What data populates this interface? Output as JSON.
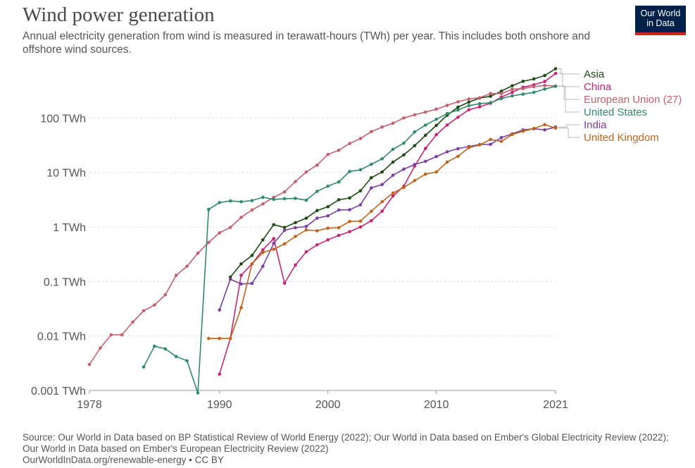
{
  "header": {
    "title": "Wind power generation",
    "subtitle": "Annual electricity generation from wind is measured in terawatt-hours (TWh) per year. This includes both onshore and offshore wind sources.",
    "logo_line1": "Our World",
    "logo_line2": "in Data"
  },
  "footer": {
    "source": "Source: Our World in Data based on BP Statistical Review of World Energy (2022); Our World in Data based on Ember's Global Electricity Review (2022); Our World in Data based on Ember's European Electricity Review (2022)",
    "url": "OurWorldInData.org/renewable-energy • CC BY"
  },
  "chart_data": {
    "type": "line",
    "title": "Wind power generation",
    "y_scale": "log",
    "ylim": [
      0.001,
      1000
    ],
    "xlim": [
      1978,
      2021
    ],
    "x_ticks": [
      1978,
      1990,
      2000,
      2010,
      2021
    ],
    "y_ticks": [
      {
        "value": 0.001,
        "label": "0.001 TWh"
      },
      {
        "value": 0.01,
        "label": "0.01 TWh"
      },
      {
        "value": 0.1,
        "label": "0.1 TWh"
      },
      {
        "value": 1,
        "label": "1 TWh"
      },
      {
        "value": 10,
        "label": "10 TWh"
      },
      {
        "value": 100,
        "label": "100 TWh"
      }
    ],
    "grid": "horizontal dashed",
    "legend_position": "right",
    "series": [
      {
        "name": "Asia",
        "color": "#1e4a14",
        "points": [
          [
            1991,
            0.12
          ],
          [
            1992,
            0.21
          ],
          [
            1993,
            0.3
          ],
          [
            1994,
            0.58
          ],
          [
            1995,
            1.1
          ],
          [
            1996,
            0.98
          ],
          [
            1997,
            1.2
          ],
          [
            1998,
            1.45
          ],
          [
            1999,
            2.0
          ],
          [
            2000,
            2.35
          ],
          [
            2001,
            3.15
          ],
          [
            2002,
            3.4
          ],
          [
            2003,
            4.6
          ],
          [
            2004,
            8.0
          ],
          [
            2005,
            10.2
          ],
          [
            2006,
            15.5
          ],
          [
            2007,
            21
          ],
          [
            2008,
            31
          ],
          [
            2009,
            48
          ],
          [
            2010,
            73
          ],
          [
            2011,
            112
          ],
          [
            2012,
            158
          ],
          [
            2013,
            195
          ],
          [
            2014,
            232
          ],
          [
            2015,
            250
          ],
          [
            2016,
            310
          ],
          [
            2017,
            390
          ],
          [
            2018,
            470
          ],
          [
            2019,
            520
          ],
          [
            2020,
            600
          ],
          [
            2021,
            800
          ]
        ]
      },
      {
        "name": "China",
        "color": "#c82473",
        "points": [
          [
            1990,
            0.002
          ],
          [
            1991,
            0.009
          ],
          [
            1992,
            0.13
          ],
          [
            1993,
            0.21
          ],
          [
            1994,
            0.38
          ],
          [
            1995,
            0.61
          ],
          [
            1996,
            0.093
          ],
          [
            1997,
            0.2
          ],
          [
            1998,
            0.35
          ],
          [
            1999,
            0.47
          ],
          [
            2000,
            0.58
          ],
          [
            2001,
            0.7
          ],
          [
            2002,
            0.82
          ],
          [
            2003,
            1.0
          ],
          [
            2004,
            1.3
          ],
          [
            2005,
            1.95
          ],
          [
            2006,
            3.7
          ],
          [
            2007,
            5.6
          ],
          [
            2008,
            13.1
          ],
          [
            2009,
            27.6
          ],
          [
            2010,
            49.4
          ],
          [
            2011,
            74.1
          ],
          [
            2012,
            103
          ],
          [
            2013,
            141
          ],
          [
            2014,
            160
          ],
          [
            2015,
            186
          ],
          [
            2016,
            241
          ],
          [
            2017,
            295
          ],
          [
            2018,
            366
          ],
          [
            2019,
            406
          ],
          [
            2020,
            467
          ],
          [
            2021,
            656
          ]
        ]
      },
      {
        "name": "European Union (27)",
        "color": "#c45f6e",
        "points": [
          [
            1978,
            0.003
          ],
          [
            1979,
            0.006
          ],
          [
            1980,
            0.0105
          ],
          [
            1981,
            0.0105
          ],
          [
            1982,
            0.018
          ],
          [
            1983,
            0.029
          ],
          [
            1984,
            0.037
          ],
          [
            1985,
            0.057
          ],
          [
            1986,
            0.13
          ],
          [
            1987,
            0.19
          ],
          [
            1988,
            0.33
          ],
          [
            1989,
            0.52
          ],
          [
            1990,
            0.78
          ],
          [
            1991,
            0.98
          ],
          [
            1992,
            1.5
          ],
          [
            1993,
            2.05
          ],
          [
            1994,
            2.65
          ],
          [
            1995,
            3.5
          ],
          [
            1996,
            4.4
          ],
          [
            1997,
            6.8
          ],
          [
            1998,
            10.2
          ],
          [
            1999,
            13.6
          ],
          [
            2000,
            21.4
          ],
          [
            2001,
            25.5
          ],
          [
            2002,
            34
          ],
          [
            2003,
            42
          ],
          [
            2004,
            56
          ],
          [
            2005,
            68
          ],
          [
            2006,
            80
          ],
          [
            2007,
            100
          ],
          [
            2008,
            114
          ],
          [
            2009,
            128
          ],
          [
            2010,
            145
          ],
          [
            2011,
            170
          ],
          [
            2012,
            198
          ],
          [
            2013,
            222
          ],
          [
            2014,
            235
          ],
          [
            2015,
            280
          ],
          [
            2016,
            280
          ],
          [
            2017,
            335
          ],
          [
            2018,
            345
          ],
          [
            2019,
            375
          ],
          [
            2020,
            395
          ],
          [
            2021,
            385
          ]
        ]
      },
      {
        "name": "United States",
        "color": "#2f8a68",
        "points": [
          [
            1983,
            0.0027
          ],
          [
            1984,
            0.0065
          ],
          [
            1985,
            0.0058
          ],
          [
            1986,
            0.0042
          ],
          [
            1987,
            0.0035
          ],
          [
            1988,
            0.0009
          ],
          [
            1989,
            2.1
          ],
          [
            1990,
            2.8
          ],
          [
            1991,
            3.0
          ],
          [
            1992,
            2.9
          ],
          [
            1993,
            3.05
          ],
          [
            1994,
            3.5
          ],
          [
            1995,
            3.2
          ],
          [
            1996,
            3.3
          ],
          [
            1997,
            3.35
          ],
          [
            1998,
            3.1
          ],
          [
            1999,
            4.5
          ],
          [
            2000,
            5.6
          ],
          [
            2001,
            6.7
          ],
          [
            2002,
            10.4
          ],
          [
            2003,
            11.2
          ],
          [
            2004,
            14.1
          ],
          [
            2005,
            17.8
          ],
          [
            2006,
            26.6
          ],
          [
            2007,
            34.5
          ],
          [
            2008,
            55.4
          ],
          [
            2009,
            73.9
          ],
          [
            2010,
            94.7
          ],
          [
            2011,
            120
          ],
          [
            2012,
            140
          ],
          [
            2013,
            168
          ],
          [
            2014,
            182
          ],
          [
            2015,
            191
          ],
          [
            2016,
            227
          ],
          [
            2017,
            254
          ],
          [
            2018,
            273
          ],
          [
            2019,
            295
          ],
          [
            2020,
            338
          ],
          [
            2021,
            380
          ]
        ]
      },
      {
        "name": "India",
        "color": "#7b3fa1",
        "points": [
          [
            1990,
            0.03
          ],
          [
            1991,
            0.11
          ],
          [
            1992,
            0.09
          ],
          [
            1993,
            0.092
          ],
          [
            1994,
            0.19
          ],
          [
            1995,
            0.5
          ],
          [
            1996,
            0.87
          ],
          [
            1997,
            0.97
          ],
          [
            1998,
            1.02
          ],
          [
            1999,
            1.45
          ],
          [
            2000,
            1.6
          ],
          [
            2001,
            2.05
          ],
          [
            2002,
            2.07
          ],
          [
            2003,
            2.55
          ],
          [
            2004,
            5.2
          ],
          [
            2005,
            6.0
          ],
          [
            2006,
            8.9
          ],
          [
            2007,
            11.5
          ],
          [
            2008,
            14.0
          ],
          [
            2009,
            16.0
          ],
          [
            2010,
            19.6
          ],
          [
            2011,
            23.9
          ],
          [
            2012,
            27.3
          ],
          [
            2013,
            29.9
          ],
          [
            2014,
            32.6
          ],
          [
            2015,
            32.8
          ],
          [
            2016,
            43.6
          ],
          [
            2017,
            51.0
          ],
          [
            2018,
            60.3
          ],
          [
            2019,
            63.3
          ],
          [
            2020,
            60.4
          ],
          [
            2021,
            68.1
          ]
        ]
      },
      {
        "name": "United Kingdom",
        "color": "#c0641c",
        "points": [
          [
            1989,
            0.009
          ],
          [
            1990,
            0.009
          ],
          [
            1991,
            0.009
          ],
          [
            1992,
            0.033
          ],
          [
            1993,
            0.21
          ],
          [
            1994,
            0.34
          ],
          [
            1995,
            0.39
          ],
          [
            1996,
            0.49
          ],
          [
            1997,
            0.67
          ],
          [
            1998,
            0.88
          ],
          [
            1999,
            0.85
          ],
          [
            2000,
            0.95
          ],
          [
            2001,
            0.97
          ],
          [
            2002,
            1.26
          ],
          [
            2003,
            1.28
          ],
          [
            2004,
            1.94
          ],
          [
            2005,
            2.9
          ],
          [
            2006,
            4.2
          ],
          [
            2007,
            5.3
          ],
          [
            2008,
            7.1
          ],
          [
            2009,
            9.3
          ],
          [
            2010,
            10.2
          ],
          [
            2011,
            15.5
          ],
          [
            2012,
            19.8
          ],
          [
            2013,
            28.4
          ],
          [
            2014,
            32.0
          ],
          [
            2015,
            40.3
          ],
          [
            2016,
            37.2
          ],
          [
            2017,
            49.6
          ],
          [
            2018,
            57.1
          ],
          [
            2019,
            64.1
          ],
          [
            2020,
            75.4
          ],
          [
            2021,
            65.2
          ]
        ]
      }
    ]
  }
}
